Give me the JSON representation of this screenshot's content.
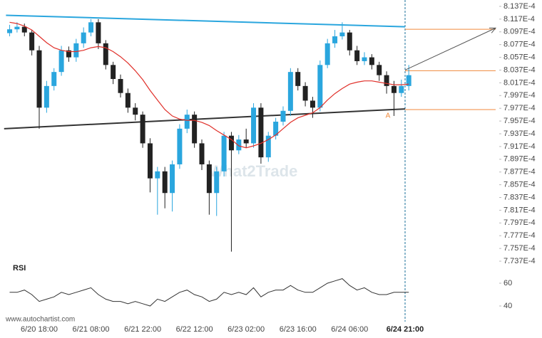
{
  "chart_data": {
    "type": "candlestick",
    "x": [
      "6/20 10:00",
      "6/20 12:00",
      "6/20 14:00",
      "6/20 16:00",
      "6/20 18:00",
      "6/20 20:00",
      "6/20 22:00",
      "6/21 00:00",
      "6/21 02:00",
      "6/21 04:00",
      "6/21 06:00",
      "6/21 08:00",
      "6/21 10:00",
      "6/21 12:00",
      "6/21 14:00",
      "6/21 16:00",
      "6/21 18:00",
      "6/21 20:00",
      "6/21 22:00",
      "6/22 00:00",
      "6/22 02:00",
      "6/22 04:00",
      "6/22 06:00",
      "6/22 08:00",
      "6/22 10:00",
      "6/22 12:00",
      "6/22 14:00",
      "6/22 16:00",
      "6/22 18:00",
      "6/22 20:00",
      "6/22 22:00",
      "6/23 00:00",
      "6/23 02:00",
      "6/23 04:00",
      "6/23 06:00",
      "6/23 08:00",
      "6/23 10:00",
      "6/23 12:00",
      "6/23 14:00",
      "6/23 16:00",
      "6/23 18:00",
      "6/23 20:00",
      "6/23 22:00",
      "6/24 00:00",
      "6/24 02:00",
      "6/24 04:00",
      "6/24 06:00",
      "6/24 08:00",
      "6/24 10:00",
      "6/24 12:00",
      "6/24 14:00",
      "6/24 16:00",
      "6/24 18:00",
      "6/24 20:00",
      "6/24 22:00"
    ],
    "open": [
      0.0008095,
      0.0008101,
      0.0008105,
      0.0008096,
      0.0008068,
      0.0007978,
      0.0008012,
      0.0008034,
      0.0008068,
      0.0008057,
      0.0008079,
      0.0008096,
      0.0008112,
      0.0008079,
      0.0008045,
      0.0008023,
      0.0008001,
      0.0007978,
      0.0007967,
      0.0007922,
      0.0007867,
      0.0007878,
      0.0007844,
      0.0007889,
      0.0007945,
      0.0007967,
      0.0007922,
      0.0007889,
      0.0007844,
      0.0007878,
      0.0007934,
      0.0007911,
      0.0007928,
      0.0007922,
      0.0007978,
      0.00079,
      0.0007934,
      0.0007956,
      0.0007973,
      0.0008034,
      0.0008012,
      0.0007989,
      0.0007978,
      0.0008045,
      0.0008079,
      0.000809,
      0.0008096,
      0.0008068,
      0.0008051,
      0.0008057,
      0.0008045,
      0.0008029,
      0.0008012,
      0.0008001,
      0.0008012
    ],
    "high": [
      0.0008108,
      0.0008112,
      0.000811,
      0.00081,
      0.0008075,
      0.000802,
      0.000804,
      0.0008075,
      0.0008074,
      0.0008086,
      0.0008104,
      0.0008117,
      0.0008117,
      0.0008084,
      0.000805,
      0.000803,
      0.0008008,
      0.0007985,
      0.0007972,
      0.000793,
      0.0007885,
      0.0007885,
      0.0007895,
      0.0007952,
      0.0007975,
      0.0007972,
      0.0007928,
      0.0007895,
      0.0007885,
      0.000794,
      0.000794,
      0.0007935,
      0.0007945,
      0.0007985,
      0.0007985,
      0.000794,
      0.0007962,
      0.000798,
      0.000804,
      0.000804,
      0.0008018,
      0.0007995,
      0.0008052,
      0.0008086,
      0.00081,
      0.0008112,
      0.00081,
      0.0008075,
      0.0008065,
      0.0008062,
      0.000805,
      0.0008035,
      0.000802,
      0.0008022,
      0.0008045
    ],
    "low": [
      0.000809,
      0.0008096,
      0.000809,
      0.000806,
      0.0007945,
      0.000797,
      0.0008005,
      0.0008028,
      0.000805,
      0.000805,
      0.0008072,
      0.000809,
      0.000807,
      0.0008038,
      0.0008015,
      0.0007994,
      0.000797,
      0.0007958,
      0.0007915,
      0.0007845,
      0.000781,
      0.000782,
      0.0007815,
      0.0007882,
      0.0007938,
      0.0007915,
      0.000788,
      0.000781,
      0.0007808,
      0.000787,
      0.0007752,
      0.0007905,
      0.0007915,
      0.0007915,
      0.000789,
      0.0007893,
      0.0007928,
      0.000795,
      0.0007965,
      0.0008005,
      0.000798,
      0.0007962,
      0.0007972,
      0.000804,
      0.0008072,
      0.0008085,
      0.000806,
      0.0008045,
      0.0008045,
      0.0008038,
      0.000802,
      0.0008,
      0.0007965,
      0.0007995,
      0.0008005
    ],
    "close": [
      0.0008101,
      0.0008105,
      0.0008096,
      0.0008068,
      0.0007978,
      0.0008012,
      0.0008034,
      0.0008068,
      0.0008057,
      0.0008079,
      0.0008096,
      0.0008112,
      0.0008079,
      0.0008045,
      0.0008023,
      0.0008001,
      0.0007978,
      0.0007967,
      0.0007922,
      0.0007867,
      0.0007878,
      0.0007844,
      0.0007889,
      0.0007945,
      0.0007967,
      0.0007922,
      0.0007889,
      0.0007844,
      0.0007878,
      0.0007934,
      0.0007911,
      0.0007928,
      0.0007922,
      0.0007978,
      0.00079,
      0.0007934,
      0.0007956,
      0.0007973,
      0.0008034,
      0.0008012,
      0.0007989,
      0.0007978,
      0.0008045,
      0.0008079,
      0.000809,
      0.0008096,
      0.0008068,
      0.0008051,
      0.0008057,
      0.0008045,
      0.0008029,
      0.0008012,
      0.0008001,
      0.0008012,
      0.0008029
    ],
    "up_color": "#2aa6de",
    "down_color": "#222222",
    "ylim": [
      0.0007727,
      0.0008147
    ],
    "yticks": [
      {
        "value": 0.0008137,
        "label": "8.137E-4"
      },
      {
        "value": 0.0008117,
        "label": "8.117E-4"
      },
      {
        "value": 0.0008097,
        "label": "8.097E-4"
      },
      {
        "value": 0.0008077,
        "label": "8.077E-4"
      },
      {
        "value": 0.0008057,
        "label": "8.057E-4"
      },
      {
        "value": 0.0008037,
        "label": "8.037E-4"
      },
      {
        "value": 0.0008017,
        "label": "8.017E-4"
      },
      {
        "value": 0.0007997,
        "label": "7.997E-4"
      },
      {
        "value": 0.0007977,
        "label": "7.977E-4"
      },
      {
        "value": 0.0007957,
        "label": "7.957E-4"
      },
      {
        "value": 0.0007937,
        "label": "7.937E-4"
      },
      {
        "value": 0.0007917,
        "label": "7.917E-4"
      },
      {
        "value": 0.0007897,
        "label": "7.897E-4"
      },
      {
        "value": 0.0007877,
        "label": "7.877E-4"
      },
      {
        "value": 0.0007857,
        "label": "7.857E-4"
      },
      {
        "value": 0.0007837,
        "label": "7.837E-4"
      },
      {
        "value": 0.0007817,
        "label": "7.817E-4"
      },
      {
        "value": 0.0007797,
        "label": "7.797E-4"
      },
      {
        "value": 0.0007777,
        "label": "7.777E-4"
      },
      {
        "value": 0.0007757,
        "label": "7.757E-4"
      },
      {
        "value": 0.0007737,
        "label": "7.737E-4"
      }
    ],
    "xticks": [
      "6/20 18:00",
      "6/21 08:00",
      "6/21 22:00",
      "6/22 12:00",
      "6/23 02:00",
      "6/23 16:00",
      "6/24 06:00",
      "6/24 21:00"
    ],
    "moving_average": {
      "color": "#e0302a",
      "values": [
        0.0008112,
        0.000811,
        0.0008106,
        0.00081,
        0.000809,
        0.000808,
        0.0008072,
        0.0008068,
        0.0008066,
        0.0008066,
        0.0008068,
        0.0008072,
        0.0008074,
        0.0008072,
        0.0008066,
        0.0008058,
        0.0008048,
        0.0008036,
        0.0008022,
        0.0008005,
        0.000799,
        0.0007975,
        0.0007965,
        0.000796,
        0.0007958,
        0.0007958,
        0.0007955,
        0.000795,
        0.0007942,
        0.0007935,
        0.0007928,
        0.0007918,
        0.0007915,
        0.0007918,
        0.0007922,
        0.0007928,
        0.0007935,
        0.0007945,
        0.0007955,
        0.0007962,
        0.0007966,
        0.000797,
        0.0007978,
        0.000799,
        0.0008,
        0.0008008,
        0.0008015,
        0.0008018,
        0.000802,
        0.000802,
        0.0008018,
        0.0008016,
        0.0008014,
        0.0008014,
        0.0008015
      ]
    },
    "resistance": {
      "color": "#2aa6de",
      "x": [
        "6/20 09:00",
        "6/24 21:00"
      ],
      "values": [
        0.0008123,
        0.0008105
      ]
    },
    "support": {
      "color": "#333333",
      "x": [
        "6/20 08:30",
        "6/24 21:00"
      ],
      "values": [
        0.0007945,
        0.0007976
      ]
    },
    "levels": {
      "color": "#f08a3c",
      "values": [
        0.0008101,
        0.0008036,
        0.0007975
      ]
    },
    "forecast": {
      "color": "#555555",
      "x": [
        "6/24 21:00",
        "6/25 21:30"
      ],
      "values": [
        0.0008037,
        0.0008103
      ]
    },
    "pattern_label": "A",
    "watermark": "What2Trade",
    "source": "www.autochartist.com",
    "rsi": {
      "title": "RSI",
      "color": "#333333",
      "ylim": [
        30,
        70
      ],
      "yticks": [
        60,
        40
      ],
      "values": [
        52,
        52,
        54,
        50,
        44,
        46,
        48,
        52,
        50,
        52,
        54,
        56,
        50,
        46,
        44,
        44,
        42,
        44,
        42,
        40,
        46,
        44,
        48,
        52,
        54,
        50,
        48,
        44,
        46,
        52,
        50,
        52,
        50,
        56,
        48,
        52,
        54,
        54,
        58,
        54,
        52,
        52,
        56,
        60,
        62,
        64,
        58,
        54,
        56,
        52,
        50,
        50,
        52,
        52,
        52
      ]
    }
  }
}
